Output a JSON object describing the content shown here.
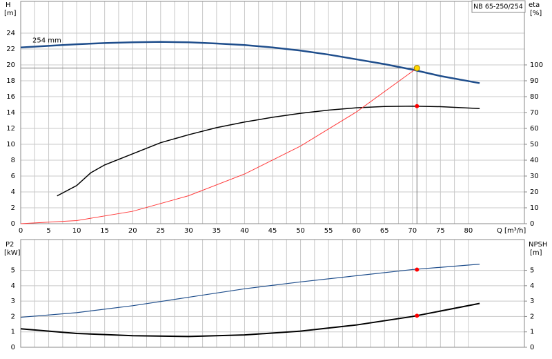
{
  "chart_data": [
    {
      "type": "line",
      "title": "NB 65-250/254",
      "ylabel": "H",
      "yunit": "[m]",
      "y2label": "eta",
      "y2unit": "[%]",
      "xlabel": "Q [m³/h]",
      "xlim": [
        0,
        90
      ],
      "xticks": [
        0,
        5,
        10,
        15,
        20,
        25,
        30,
        35,
        40,
        45,
        50,
        55,
        60,
        65,
        70,
        75,
        80
      ],
      "ylim": [
        0,
        28
      ],
      "yticks": [
        0,
        2,
        4,
        6,
        8,
        10,
        12,
        14,
        16,
        18,
        20,
        22,
        24
      ],
      "y2lim": [
        0,
        140
      ],
      "y2ticks": [
        0,
        10,
        20,
        30,
        40,
        50,
        60,
        70,
        80,
        90,
        100
      ],
      "grid": true,
      "series": [
        {
          "name": "254 mm",
          "color": "#1f4e8c",
          "width": 2.5,
          "axis": "y",
          "x": [
            0,
            5,
            10,
            15,
            20,
            25,
            30,
            35,
            40,
            45,
            50,
            55,
            60,
            65,
            70,
            75,
            82
          ],
          "values": [
            22.2,
            22.4,
            22.6,
            22.75,
            22.85,
            22.9,
            22.85,
            22.7,
            22.5,
            22.2,
            21.8,
            21.3,
            20.7,
            20.1,
            19.4,
            18.6,
            17.7
          ]
        },
        {
          "color": "#000000",
          "width": 1.5,
          "axis": "y2",
          "x": [
            6.5,
            10,
            12.5,
            15,
            20,
            25,
            30,
            35,
            40,
            45,
            50,
            55,
            60,
            65,
            70,
            75,
            82
          ],
          "values": [
            17.5,
            24,
            32,
            37,
            44,
            51,
            56,
            60.5,
            64,
            67,
            69.5,
            71.5,
            73,
            73.8,
            74,
            73.7,
            72.5
          ]
        },
        {
          "color": "#ff3b3b",
          "width": 1,
          "axis": "y",
          "x": [
            0,
            10,
            20,
            30,
            40,
            50,
            60,
            70.8
          ],
          "values": [
            0,
            0.39,
            1.56,
            3.52,
            6.26,
            9.78,
            14.08,
            19.6
          ]
        }
      ],
      "duty_line": {
        "x": 70.8,
        "y": 19.6
      },
      "points": [
        {
          "x": 70.8,
          "value": 19.6,
          "axis": "y",
          "color": "#ffd700"
        },
        {
          "x": 70.8,
          "value": 74,
          "axis": "y2",
          "color": "#ff0000"
        }
      ]
    },
    {
      "type": "line",
      "ylabel": "P2",
      "yunit": "[kW]",
      "y2label": "NPSH",
      "y2unit": "[m]",
      "xlim": [
        0,
        90
      ],
      "ylim": [
        0,
        7
      ],
      "yticks": [
        0,
        1,
        2,
        3,
        4,
        5
      ],
      "y2lim": [
        0,
        7
      ],
      "y2ticks": [
        0,
        1,
        2,
        3,
        4,
        5
      ],
      "grid": true,
      "series": [
        {
          "color": "#1f4e8c",
          "width": 1.2,
          "axis": "y",
          "x": [
            0,
            10,
            20,
            30,
            40,
            50,
            60,
            70,
            82
          ],
          "values": [
            1.95,
            2.25,
            2.7,
            3.25,
            3.8,
            4.25,
            4.65,
            5.05,
            5.4
          ]
        },
        {
          "color": "#000000",
          "width": 2,
          "axis": "y2",
          "x": [
            0,
            10,
            20,
            30,
            40,
            50,
            60,
            70,
            82
          ],
          "values": [
            1.2,
            0.9,
            0.75,
            0.7,
            0.8,
            1.05,
            1.45,
            2.0,
            2.85
          ]
        }
      ],
      "points": [
        {
          "x": 70.8,
          "value": 5.05,
          "axis": "y",
          "color": "#ff0000"
        },
        {
          "x": 70.8,
          "value": 2.05,
          "axis": "y2",
          "color": "#ff0000"
        }
      ]
    }
  ]
}
